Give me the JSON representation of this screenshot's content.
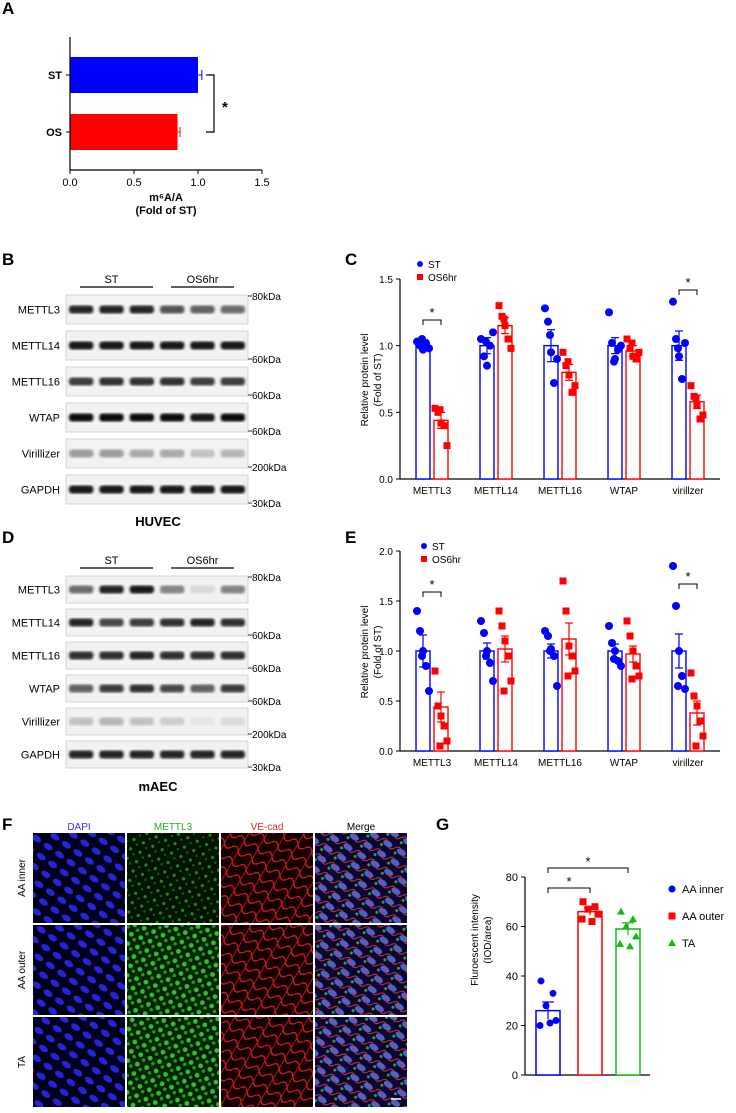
{
  "panels": {
    "A": {
      "label": "A",
      "xlabel_line1": "m⁶A/A",
      "xlabel_line2": "(Fold of ST)",
      "sig": "*",
      "colors": {
        "ST": "#0000ff",
        "OS": "#ff0000"
      }
    },
    "B": {
      "label": "B",
      "groups": [
        "ST",
        "OS6hr"
      ],
      "rows": [
        "METTL3",
        "METTL14",
        "METTL16",
        "WTAP",
        "Virillizer",
        "GAPDH"
      ],
      "sizes": [
        "80kDa",
        "60kDa",
        "60kDa",
        "60kDa",
        "200kDa",
        "30kDa"
      ],
      "cell_label": "HUVEC"
    },
    "C": {
      "label": "C",
      "ylabel_line1": "Relative protein level",
      "ylabel_line2": "(Fold of ST)",
      "legend": [
        "ST",
        "OS6hr"
      ],
      "sig_marks": [
        "*",
        "*"
      ]
    },
    "D": {
      "label": "D",
      "groups": [
        "ST",
        "OS6hr"
      ],
      "rows": [
        "METTL3",
        "METTL14",
        "METTL16",
        "WTAP",
        "Virillizer",
        "GAPDH"
      ],
      "sizes": [
        "80kDa",
        "60kDa",
        "60kDa",
        "60kDa",
        "200kDa",
        "30kDa"
      ],
      "cell_label": "mAEC"
    },
    "E": {
      "label": "E",
      "ylabel_line1": "Relative protein level",
      "ylabel_line2": "(Fold of ST)",
      "legend": [
        "ST",
        "OS6hr"
      ],
      "sig_marks": [
        "*",
        "*"
      ]
    },
    "F": {
      "label": "F",
      "columns": [
        "DAPI",
        "METTL3",
        "VE-cad",
        "Merge"
      ],
      "column_colors": [
        "#3333ff",
        "#22aa22",
        "#ee2222",
        "#000000"
      ],
      "rows": [
        "AA inner",
        "AA outer",
        "TA"
      ]
    },
    "G": {
      "label": "G",
      "ylabel_line1": "Fluroescent intensity",
      "ylabel_line2": "(IOD/area)",
      "legend": [
        "AA inner",
        "AA outer",
        "TA"
      ],
      "sig_marks": [
        "*",
        "*"
      ]
    }
  },
  "chart_data": [
    {
      "type": "bar",
      "panel": "A",
      "orientation": "horizontal",
      "categories": [
        "ST",
        "OS"
      ],
      "values": [
        1.0,
        0.84
      ],
      "errors": [
        0.03,
        0.02
      ],
      "xlim": [
        0,
        1.5
      ],
      "xticks": [
        "0.0",
        "0.5",
        "1.0",
        "1.5"
      ],
      "xlabel": "m⁶A/A (Fold of ST)"
    },
    {
      "type": "bar",
      "panel": "C",
      "categories": [
        "METTL3",
        "METTL14",
        "METTL16",
        "WTAP",
        "virillzer"
      ],
      "ylim": [
        0,
        1.5
      ],
      "yticks": [
        "0.0",
        "0.5",
        "1.0",
        "1.5"
      ],
      "ylabel": "Relative protein level (Fold of ST)",
      "series": [
        {
          "name": "ST",
          "color": "#0000ff",
          "values": [
            1.0,
            1.0,
            1.0,
            1.0,
            1.0
          ],
          "errors": [
            0.03,
            0.06,
            0.12,
            0.06,
            0.11
          ],
          "points": [
            [
              1.03,
              1.0,
              0.97,
              1.02,
              0.98,
              1.05
            ],
            [
              1.05,
              0.92,
              0.85,
              1.0,
              1.1,
              1.03
            ],
            [
              1.28,
              1.18,
              0.95,
              0.72,
              0.9,
              1.08
            ],
            [
              1.25,
              1.02,
              0.9,
              0.97,
              1.0,
              0.88
            ],
            [
              1.33,
              1.05,
              0.92,
              0.75,
              1.02,
              0.98
            ]
          ]
        },
        {
          "name": "OS6hr",
          "color": "#ff0000",
          "values": [
            0.44,
            1.15,
            0.8,
            0.96,
            0.58
          ],
          "errors": [
            0.06,
            0.06,
            0.06,
            0.04,
            0.05
          ],
          "points": [
            [
              0.53,
              0.5,
              0.42,
              0.4,
              0.25,
              0.52
            ],
            [
              1.3,
              1.22,
              1.15,
              1.05,
              0.98,
              1.2
            ],
            [
              0.95,
              0.85,
              0.78,
              0.65,
              0.7,
              0.88
            ],
            [
              1.05,
              0.98,
              0.92,
              0.9,
              0.95,
              1.02
            ],
            [
              0.7,
              0.62,
              0.55,
              0.45,
              0.48,
              0.6
            ]
          ]
        }
      ],
      "significance": [
        {
          "category": "METTL3",
          "mark": "*"
        },
        {
          "category": "virillzer",
          "mark": "*"
        }
      ]
    },
    {
      "type": "bar",
      "panel": "E",
      "categories": [
        "METTL3",
        "METTL14",
        "METTL16",
        "WTAP",
        "virillzer"
      ],
      "ylim": [
        0,
        2.0
      ],
      "yticks": [
        "0.0",
        "0.5",
        "1.0",
        "1.5",
        "2.0"
      ],
      "ylabel": "Relative protein level (Fold of ST)",
      "series": [
        {
          "name": "ST",
          "color": "#0000ff",
          "values": [
            1.0,
            1.0,
            1.0,
            1.0,
            1.0
          ],
          "errors": [
            0.16,
            0.08,
            0.07,
            0.07,
            0.17
          ],
          "points": [
            [
              1.4,
              1.2,
              1.0,
              0.85,
              0.6,
              0.95
            ],
            [
              1.3,
              1.18,
              1.0,
              0.88,
              0.7,
              0.95
            ],
            [
              1.2,
              1.15,
              1.02,
              0.95,
              0.65,
              1.0
            ],
            [
              1.25,
              1.08,
              1.0,
              0.9,
              0.85,
              0.92
            ],
            [
              1.85,
              1.45,
              1.0,
              0.75,
              0.62,
              0.65
            ]
          ]
        },
        {
          "name": "OS6hr",
          "color": "#ff0000",
          "values": [
            0.44,
            1.02,
            1.12,
            0.97,
            0.38
          ],
          "errors": [
            0.15,
            0.13,
            0.16,
            0.08,
            0.12
          ],
          "points": [
            [
              0.8,
              0.45,
              0.35,
              0.25,
              0.1,
              0.05
            ],
            [
              1.4,
              1.25,
              1.1,
              0.95,
              0.7,
              0.6
            ],
            [
              1.7,
              1.4,
              1.05,
              0.95,
              0.8,
              0.75
            ],
            [
              1.3,
              1.15,
              1.0,
              0.85,
              0.75,
              0.72
            ],
            [
              0.78,
              0.55,
              0.45,
              0.3,
              0.15,
              0.05
            ]
          ]
        }
      ],
      "significance": [
        {
          "category": "METTL3",
          "mark": "*"
        },
        {
          "category": "virillzer",
          "mark": "*"
        }
      ]
    },
    {
      "type": "bar",
      "panel": "G",
      "categories": [
        "AA inner",
        "AA outer",
        "TA"
      ],
      "values": [
        26,
        66,
        59
      ],
      "errors": [
        3.5,
        1.5,
        2.5
      ],
      "colors": [
        "#0000ff",
        "#ff0000",
        "#11bb11"
      ],
      "ylim": [
        0,
        80
      ],
      "yticks": [
        "0",
        "20",
        "40",
        "60",
        "80"
      ],
      "ylabel": "Fluroescent intensity (IOD/area)",
      "points": [
        [
          38,
          33,
          28,
          22,
          20,
          21
        ],
        [
          70,
          68,
          67,
          65,
          63,
          62
        ],
        [
          66,
          63,
          60,
          56,
          53,
          52
        ]
      ],
      "significance": [
        {
          "pair": [
            "AA inner",
            "AA outer"
          ],
          "mark": "*"
        },
        {
          "pair": [
            "AA inner",
            "TA"
          ],
          "mark": "*"
        }
      ]
    }
  ]
}
